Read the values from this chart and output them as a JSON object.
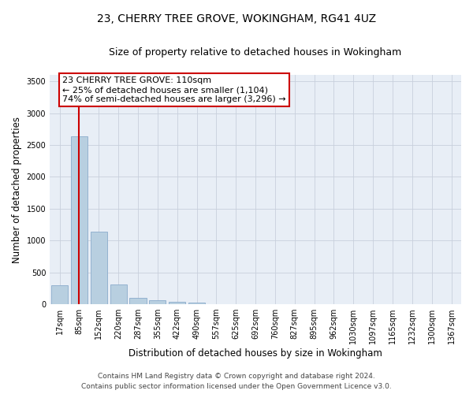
{
  "title": "23, CHERRY TREE GROVE, WOKINGHAM, RG41 4UZ",
  "subtitle": "Size of property relative to detached houses in Wokingham",
  "xlabel": "Distribution of detached houses by size in Wokingham",
  "ylabel": "Number of detached properties",
  "bar_labels": [
    "17sqm",
    "85sqm",
    "152sqm",
    "220sqm",
    "287sqm",
    "355sqm",
    "422sqm",
    "490sqm",
    "557sqm",
    "625sqm",
    "692sqm",
    "760sqm",
    "827sqm",
    "895sqm",
    "962sqm",
    "1030sqm",
    "1097sqm",
    "1165sqm",
    "1232sqm",
    "1300sqm",
    "1367sqm"
  ],
  "bar_values": [
    300,
    2630,
    1140,
    315,
    95,
    65,
    35,
    20,
    0,
    0,
    0,
    0,
    0,
    0,
    0,
    0,
    0,
    0,
    0,
    0,
    0
  ],
  "bar_color": "#b8cfe0",
  "bar_edge_color": "#8aabcc",
  "vline_x_index": 1,
  "vline_color": "#cc0000",
  "annotation_text": "23 CHERRY TREE GROVE: 110sqm\n← 25% of detached houses are smaller (1,104)\n74% of semi-detached houses are larger (3,296) →",
  "annotation_box_facecolor": "#ffffff",
  "annotation_box_edgecolor": "#cc0000",
  "ylim": [
    0,
    3600
  ],
  "yticks": [
    0,
    500,
    1000,
    1500,
    2000,
    2500,
    3000,
    3500
  ],
  "bg_color": "#e8eef6",
  "grid_color": "#c8d0dc",
  "footer_line1": "Contains HM Land Registry data © Crown copyright and database right 2024.",
  "footer_line2": "Contains public sector information licensed under the Open Government Licence v3.0.",
  "title_fontsize": 10,
  "subtitle_fontsize": 9,
  "xlabel_fontsize": 8.5,
  "ylabel_fontsize": 8.5,
  "tick_fontsize": 7,
  "annotation_fontsize": 8,
  "footer_fontsize": 6.5
}
